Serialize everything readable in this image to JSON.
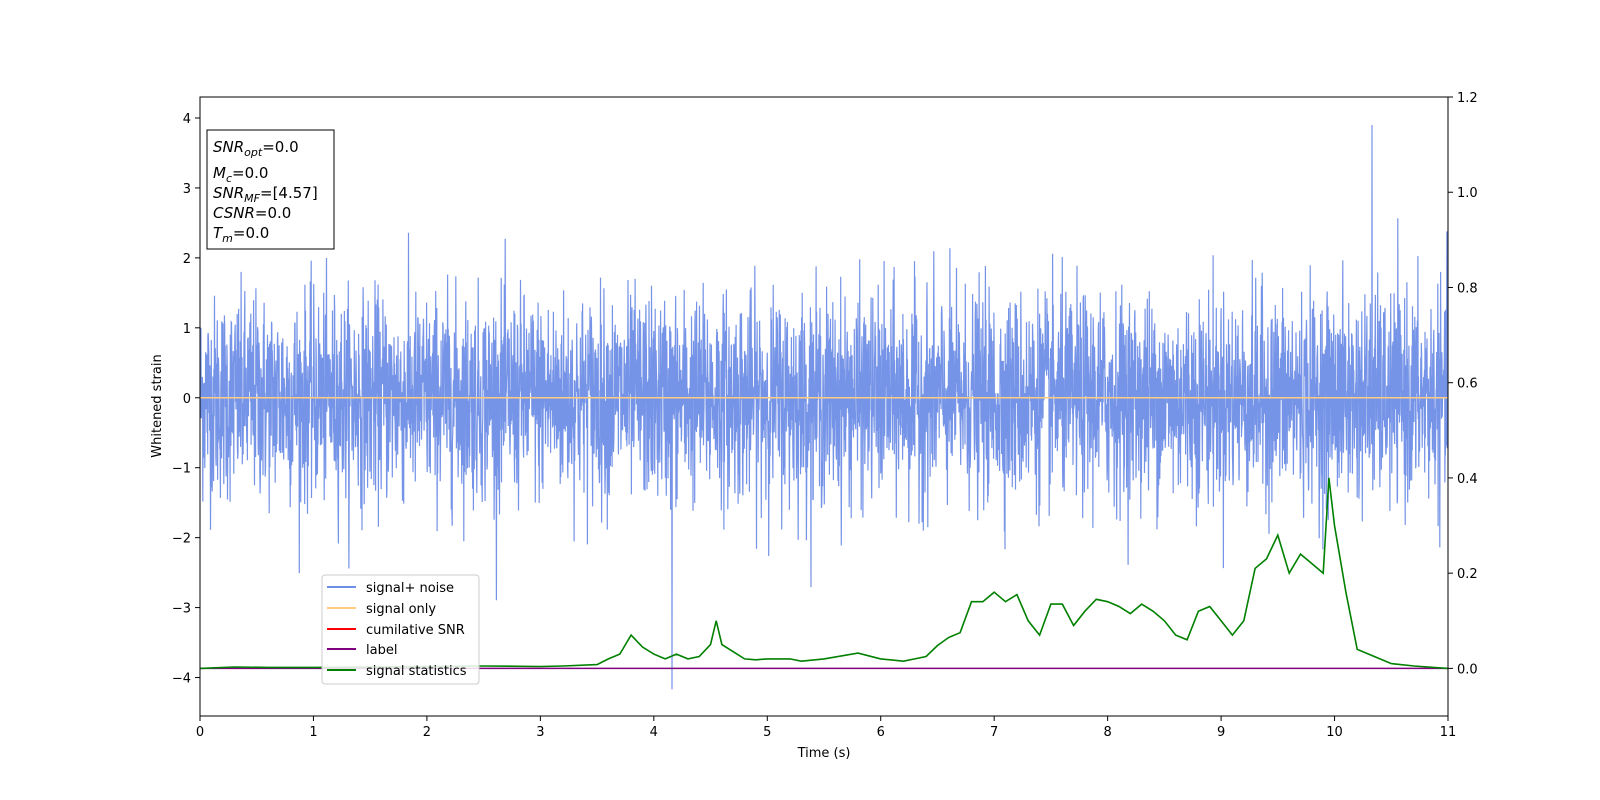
{
  "chart_data": {
    "type": "line",
    "xlabel": "Time (s)",
    "ylabel": "Whitened strain",
    "xlim": [
      0,
      11
    ],
    "ylim": [
      -4.55,
      4.3
    ],
    "y2lim": [
      -0.1,
      1.2
    ],
    "x_ticks": [
      "0",
      "1",
      "2",
      "3",
      "4",
      "5",
      "6",
      "7",
      "8",
      "9",
      "10",
      "11"
    ],
    "y_ticks": [
      "4",
      "3",
      "2",
      "1",
      "0",
      "−1",
      "−2",
      "−3",
      "−4"
    ],
    "y2_ticks": [
      "1.2",
      "1.0",
      "0.8",
      "0.6",
      "0.4",
      "0.2",
      "0.0"
    ],
    "info_box": {
      "snr_opt": {
        "main": "SNR",
        "sub": "opt",
        "value": "=0.0"
      },
      "mc": {
        "main": "M",
        "sub": "c",
        "value": "=0.0"
      },
      "snr_mf": {
        "main": "SNR",
        "sub": "MF",
        "value": "=[4.57]"
      },
      "csnr": {
        "main": "CSNR",
        "value": "=0.0"
      },
      "tm": {
        "main": "T",
        "sub": "m",
        "value": "=0.0"
      }
    },
    "legend": {
      "position": "lower-left",
      "entries": [
        {
          "label": "signal+ noise",
          "color": "#6f8ee6"
        },
        {
          "label": "signal only",
          "color": "#ffcc80"
        },
        {
          "label": "cumilative SNR",
          "color": "#ff0000"
        },
        {
          "label": "label",
          "color": "#800080"
        },
        {
          "label": "signal statistics",
          "color": "#008000"
        }
      ]
    },
    "series": [
      {
        "name": "signal+ noise",
        "axis": "left",
        "color": "#6f8ee6",
        "kind": "dense noise, typical range about ±1.5, peaks up to 3.9 near t=10.33 and down to -4.17 near t=4.16"
      },
      {
        "name": "signal only",
        "axis": "left",
        "color": "#ffcc80",
        "x": [
          0,
          11
        ],
        "y": [
          0,
          0
        ]
      },
      {
        "name": "label",
        "axis": "right",
        "color": "#800080",
        "x": [
          0,
          11
        ],
        "y": [
          0,
          0
        ]
      },
      {
        "name": "signal statistics",
        "axis": "right",
        "color": "#008000",
        "x": [
          0,
          0.3,
          0.6,
          1.0,
          1.5,
          2.0,
          2.5,
          3.0,
          3.2,
          3.5,
          3.6,
          3.7,
          3.8,
          3.9,
          4.0,
          4.1,
          4.2,
          4.3,
          4.4,
          4.5,
          4.55,
          4.6,
          4.7,
          4.8,
          4.9,
          5.0,
          5.2,
          5.3,
          5.5,
          5.8,
          6.0,
          6.2,
          6.3,
          6.4,
          6.5,
          6.6,
          6.7,
          6.8,
          6.9,
          7.0,
          7.1,
          7.2,
          7.3,
          7.4,
          7.5,
          7.6,
          7.7,
          7.8,
          7.9,
          8.0,
          8.1,
          8.2,
          8.3,
          8.4,
          8.5,
          8.6,
          8.7,
          8.8,
          8.9,
          9.0,
          9.1,
          9.2,
          9.3,
          9.4,
          9.5,
          9.6,
          9.7,
          9.8,
          9.9,
          9.95,
          10.0,
          10.1,
          10.2,
          10.3,
          10.5,
          10.7,
          11.0
        ],
        "y": [
          0.0,
          0.003,
          0.002,
          0.002,
          0.003,
          0.004,
          0.005,
          0.004,
          0.005,
          0.008,
          0.02,
          0.03,
          0.07,
          0.045,
          0.03,
          0.02,
          0.03,
          0.02,
          0.025,
          0.05,
          0.1,
          0.05,
          0.035,
          0.02,
          0.018,
          0.02,
          0.02,
          0.015,
          0.02,
          0.032,
          0.02,
          0.015,
          0.02,
          0.025,
          0.048,
          0.065,
          0.075,
          0.14,
          0.14,
          0.16,
          0.14,
          0.155,
          0.1,
          0.07,
          0.135,
          0.135,
          0.09,
          0.12,
          0.145,
          0.14,
          0.13,
          0.115,
          0.135,
          0.12,
          0.1,
          0.07,
          0.06,
          0.12,
          0.13,
          0.1,
          0.07,
          0.1,
          0.21,
          0.23,
          0.28,
          0.2,
          0.24,
          0.22,
          0.2,
          0.4,
          0.3,
          0.16,
          0.04,
          0.03,
          0.01,
          0.005,
          0.0
        ]
      }
    ]
  }
}
